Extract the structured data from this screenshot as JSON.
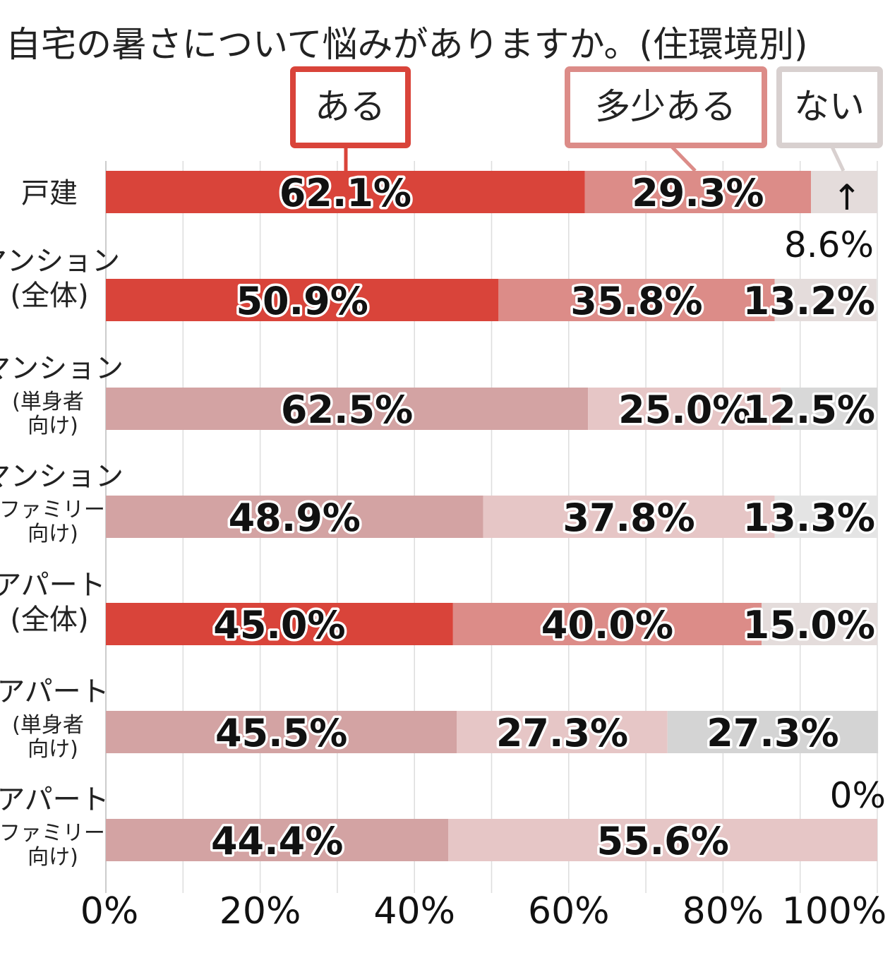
{
  "chart_data": {
    "type": "bar",
    "orientation": "horizontal",
    "stacked": true,
    "title": "自宅の暑さについて悩みがありますか。(住環境別)",
    "categories": [
      [
        "戸建"
      ],
      [
        "マンション",
        "(全体)"
      ],
      [
        "マンション",
        "(単身者",
        "向け)"
      ],
      [
        "マンション",
        "(ファミリー",
        "向け)"
      ],
      [
        "アパート",
        "(全体)"
      ],
      [
        "アパート",
        "(単身者",
        "向け)"
      ],
      [
        "アパート",
        "(ファミリー",
        "向け)"
      ]
    ],
    "series": [
      {
        "name": "ある",
        "values": [
          62.1,
          50.9,
          62.5,
          48.9,
          45.0,
          45.5,
          44.4
        ],
        "labels": [
          "62.1%",
          "50.9%",
          "62.5%",
          "48.9%",
          "45.0%",
          "45.5%",
          "44.4%"
        ]
      },
      {
        "name": "多少ある",
        "values": [
          29.3,
          35.8,
          25.0,
          37.8,
          40.0,
          27.3,
          55.6
        ],
        "labels": [
          "29.3%",
          "35.8%",
          "25.0%",
          "37.8%",
          "40.0%",
          "27.3%",
          "55.6%"
        ]
      },
      {
        "name": "ない",
        "values": [
          8.6,
          13.2,
          12.5,
          13.3,
          15.0,
          27.3,
          0
        ],
        "labels": [
          "8.6%",
          "13.2%",
          "12.5%",
          "13.3%",
          "15.0%",
          "27.3%",
          "0%"
        ]
      }
    ],
    "row_colors": [
      [
        "#d9443a",
        "#dc8c88",
        "#e4dcdb"
      ],
      [
        "#d9443a",
        "#dc8c88",
        "#e4dcdb"
      ],
      [
        "#d3a3a3",
        "#e6c6c6",
        "#d8d8d8"
      ],
      [
        "#d3a3a3",
        "#e6c6c6",
        "#e4e4e4"
      ],
      [
        "#d9443a",
        "#dc8c88",
        "#e4dcdb"
      ],
      [
        "#d3a3a3",
        "#e6c6c6",
        "#d4d4d4"
      ],
      [
        "#d3a3a3",
        "#e6c6c6",
        "#e4e4e4"
      ]
    ],
    "legend_colors": [
      "#d9443a",
      "#dc8c88",
      "#d8d0cf"
    ],
    "xlim": [
      0,
      100
    ],
    "x_ticks": [
      0,
      20,
      40,
      60,
      80,
      100
    ],
    "x_tick_labels": [
      "0%",
      "20%",
      "40%",
      "60%",
      "80%",
      "100%"
    ],
    "grid": true,
    "legend": "top-right",
    "annotation_arrow": "↑"
  }
}
